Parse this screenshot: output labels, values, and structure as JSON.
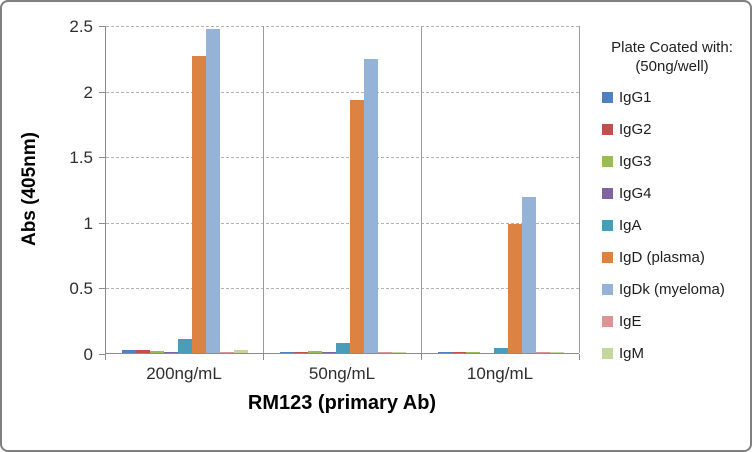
{
  "chart_data": {
    "type": "bar",
    "title": "",
    "xlabel": "RM123 (primary Ab)",
    "ylabel": "Abs (405nm)",
    "ylim": [
      0,
      2.5
    ],
    "ytick_step": 0.5,
    "ytick_labels": [
      "0",
      "0.5",
      "1",
      "1.5",
      "2",
      "2.5"
    ],
    "grid": "dashed horizontal at each 0.5, solid vertical category separators",
    "legend_position": "right",
    "legend_title_line1": "Plate Coated with:",
    "legend_title_line2": "(50ng/well)",
    "categories": [
      "200ng/mL",
      "50ng/mL",
      "10ng/mL"
    ],
    "series": [
      {
        "name": "IgG1",
        "color": "#4F81BD",
        "values": [
          0.02,
          0.01,
          0.005
        ]
      },
      {
        "name": "IgG2",
        "color": "#C0504D",
        "values": [
          0.02,
          0.01,
          0.005
        ]
      },
      {
        "name": "IgG3",
        "color": "#9BBB59",
        "values": [
          0.012,
          0.012,
          0.005
        ]
      },
      {
        "name": "IgG4",
        "color": "#8064A2",
        "values": [
          0.01,
          0.005,
          0.003
        ]
      },
      {
        "name": "IgA",
        "color": "#4A9CB8",
        "values": [
          0.11,
          0.08,
          0.04
        ]
      },
      {
        "name": "IgD (plasma)",
        "color": "#DC8344",
        "values": [
          2.26,
          1.93,
          0.98
        ]
      },
      {
        "name": "IgDk (myeloma)",
        "color": "#95B3D7",
        "values": [
          2.47,
          2.24,
          1.19
        ]
      },
      {
        "name": "IgE",
        "color": "#D99694",
        "values": [
          0.01,
          0.01,
          0.004
        ]
      },
      {
        "name": "IgM",
        "color": "#C3D69B",
        "values": [
          0.02,
          0.01,
          0.004
        ]
      }
    ]
  }
}
